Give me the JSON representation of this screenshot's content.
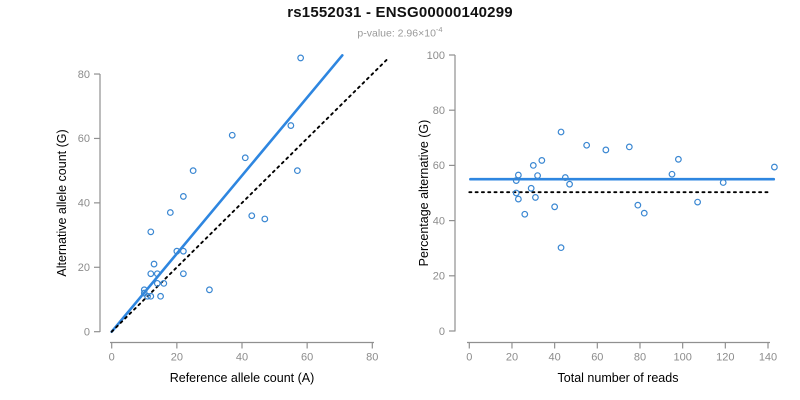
{
  "header": {
    "title": "rs1552031 - ENSG00000140299",
    "pvalue_label": "p-value: ",
    "pvalue_value": "2.96×10",
    "pvalue_exponent": "-4"
  },
  "colors": {
    "fit_line_blue": "#2E86E0",
    "point_blue": "#3A87D2",
    "dotted_black": "#000000",
    "axis_gray": "#909090",
    "tick_label_gray": "#8C8C8C",
    "title_black": "#111111",
    "subtitle_gray": "#9A9A9A"
  },
  "chart_data": [
    {
      "type": "scatter",
      "panel": "left",
      "xlabel": "Reference allele count (A)",
      "ylabel": "Alternative allele count (G)",
      "xlim": [
        0,
        80
      ],
      "ylim": [
        0,
        80
      ],
      "xticks": [
        0,
        20,
        40,
        60,
        80
      ],
      "yticks": [
        0,
        20,
        40,
        60,
        80
      ],
      "grid": false,
      "legend": "none",
      "points": [
        [
          10,
          12
        ],
        [
          10,
          13
        ],
        [
          11,
          11
        ],
        [
          12,
          11
        ],
        [
          15,
          11
        ],
        [
          12,
          18
        ],
        [
          14,
          18
        ],
        [
          14,
          15
        ],
        [
          16,
          15
        ],
        [
          13,
          21
        ],
        [
          22,
          18
        ],
        [
          20,
          25
        ],
        [
          22,
          25
        ],
        [
          12,
          31
        ],
        [
          18,
          37
        ],
        [
          22,
          42
        ],
        [
          25,
          50
        ],
        [
          30,
          13
        ],
        [
          37,
          61
        ],
        [
          41,
          54
        ],
        [
          43,
          36
        ],
        [
          47,
          35
        ],
        [
          55,
          64
        ],
        [
          57,
          50
        ],
        [
          58,
          85
        ]
      ],
      "lines": [
        {
          "name": "regression-line",
          "style": "solid",
          "color": "#2E86E0",
          "slope": 1.21,
          "intercept": 0,
          "points": [
            [
              0,
              0
            ],
            [
              70.8,
              85.8
            ]
          ]
        },
        {
          "name": "identity-line",
          "style": "dotted",
          "color": "#000000",
          "slope": 1,
          "intercept": 0,
          "points": [
            [
              0,
              0
            ],
            [
              84.6,
              84.6
            ]
          ]
        }
      ]
    },
    {
      "type": "scatter",
      "panel": "right",
      "xlabel": "Total number of reads",
      "ylabel": "Percentage alternative (G)",
      "xlim": [
        0,
        143
      ],
      "ylim": [
        0,
        100
      ],
      "xticks": [
        0,
        20,
        40,
        60,
        80,
        100,
        120,
        140
      ],
      "yticks": [
        0,
        20,
        40,
        60,
        80,
        100
      ],
      "grid": false,
      "legend": "none",
      "points": [
        [
          22,
          54.5
        ],
        [
          23,
          56.5
        ],
        [
          22,
          50
        ],
        [
          23,
          47.8
        ],
        [
          26,
          42.3
        ],
        [
          30,
          60
        ],
        [
          32,
          56.3
        ],
        [
          29,
          51.7
        ],
        [
          31,
          48.4
        ],
        [
          34,
          61.8
        ],
        [
          40,
          45
        ],
        [
          45,
          55.6
        ],
        [
          47,
          53.2
        ],
        [
          43,
          72.1
        ],
        [
          55,
          67.3
        ],
        [
          64,
          65.6
        ],
        [
          75,
          66.7
        ],
        [
          43,
          30.2
        ],
        [
          98,
          62.2
        ],
        [
          95,
          56.8
        ],
        [
          79,
          45.6
        ],
        [
          82,
          42.7
        ],
        [
          119,
          53.8
        ],
        [
          107,
          46.7
        ],
        [
          143,
          59.4
        ]
      ],
      "lines": [
        {
          "name": "mean-percentage-line",
          "style": "solid",
          "color": "#2E86E0",
          "y": 55,
          "points": [
            [
              0.5,
              55
            ],
            [
              142.7,
              55
            ]
          ]
        },
        {
          "name": "fifty-percent-line",
          "style": "dotted",
          "color": "#000000",
          "y": 50.3,
          "points": [
            [
              0,
              50.3
            ],
            [
              140.6,
              50.3
            ]
          ]
        }
      ]
    }
  ]
}
